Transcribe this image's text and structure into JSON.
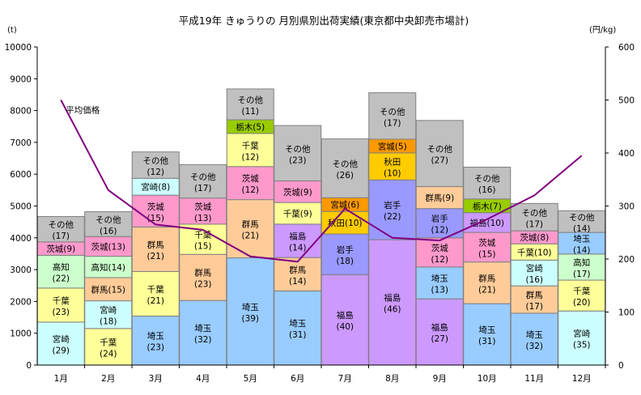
{
  "chart_data": {
    "type": "bar",
    "title": "平成19年 きゅうりの 月別県別出荷実績(東京都中央卸売市場計)",
    "ylabel_left_unit": "(t)",
    "ylabel_right_unit": "(円/kg)",
    "categories": [
      "1月",
      "2月",
      "3月",
      "4月",
      "5月",
      "6月",
      "7月",
      "8月",
      "9月",
      "10月",
      "11月",
      "12月"
    ],
    "ylim": [
      0,
      10000
    ],
    "y2lim": [
      0,
      600
    ],
    "yticks": [
      "0",
      "1000",
      "2000",
      "3000",
      "4000",
      "5000",
      "6000",
      "7000",
      "8000",
      "9000",
      "10000"
    ],
    "y2ticks": [
      "0",
      "100",
      "200",
      "300",
      "400",
      "500",
      "600"
    ],
    "colors": {
      "宮崎": "#ccffff",
      "千葉": "#ffff99",
      "高知": "#ccffcc",
      "茨城": "#ff99cc",
      "その他": "#c0c0c0",
      "群馬": "#ffcc99",
      "埼玉": "#99ccff",
      "栃木": "#99cc00",
      "福島": "#cc99ff",
      "岩手": "#9999ff",
      "秋田": "#ffcc00",
      "宮城": "#ff9900"
    },
    "stacks": [
      [
        {
          "name": "宮崎",
          "value": 1350,
          "label": "宮崎",
          "share": "(29)"
        },
        {
          "name": "千葉",
          "value": 1070,
          "label": "千葉",
          "share": "(23)"
        },
        {
          "name": "高知",
          "value": 1030,
          "label": "高知",
          "share": "(22)"
        },
        {
          "name": "茨城",
          "value": 420,
          "label": "茨城(9)"
        },
        {
          "name": "その他",
          "value": 800,
          "label": "その他",
          "share": "(17)"
        }
      ],
      [
        {
          "name": "千葉",
          "value": 1150,
          "label": "千葉",
          "share": "(24)"
        },
        {
          "name": "宮崎",
          "value": 870,
          "label": "宮崎",
          "share": "(18)"
        },
        {
          "name": "群馬",
          "value": 730,
          "label": "群馬(15)"
        },
        {
          "name": "高知",
          "value": 670,
          "label": "高知(14)"
        },
        {
          "name": "茨城",
          "value": 620,
          "label": "茨城(13)"
        },
        {
          "name": "その他",
          "value": 780,
          "label": "その他",
          "share": "(16)"
        }
      ],
      [
        {
          "name": "埼玉",
          "value": 1540,
          "label": "埼玉",
          "share": "(23)"
        },
        {
          "name": "千葉",
          "value": 1400,
          "label": "千葉",
          "share": "(21)"
        },
        {
          "name": "群馬",
          "value": 1400,
          "label": "群馬",
          "share": "(21)"
        },
        {
          "name": "茨城",
          "value": 1000,
          "label": "茨城",
          "share": "(15)"
        },
        {
          "name": "宮崎",
          "value": 530,
          "label": "宮崎(8)"
        },
        {
          "name": "その他",
          "value": 830,
          "label": "その他",
          "share": "(12)"
        }
      ],
      [
        {
          "name": "埼玉",
          "value": 2030,
          "label": "埼玉",
          "share": "(32)"
        },
        {
          "name": "群馬",
          "value": 1450,
          "label": "群馬",
          "share": "(23)"
        },
        {
          "name": "千葉",
          "value": 950,
          "label": "千葉",
          "share": "(15)"
        },
        {
          "name": "茨城",
          "value": 820,
          "label": "茨城",
          "share": "(13)"
        },
        {
          "name": "その他",
          "value": 1050,
          "label": "その他",
          "share": "(17)"
        }
      ],
      [
        {
          "name": "埼玉",
          "value": 3370,
          "label": "埼玉",
          "share": "(39)"
        },
        {
          "name": "群馬",
          "value": 1830,
          "label": "群馬",
          "share": "(21)"
        },
        {
          "name": "茨城",
          "value": 1040,
          "label": "茨城",
          "share": "(12)"
        },
        {
          "name": "千葉",
          "value": 1040,
          "label": "千葉",
          "share": "(12)"
        },
        {
          "name": "栃木",
          "value": 430,
          "label": "栃木(5)"
        },
        {
          "name": "その他",
          "value": 970,
          "label": "その他",
          "share": "(11)"
        }
      ],
      [
        {
          "name": "埼玉",
          "value": 2330,
          "label": "埼玉",
          "share": "(31)"
        },
        {
          "name": "群馬",
          "value": 1050,
          "label": "群馬",
          "share": "(14)"
        },
        {
          "name": "福島",
          "value": 1050,
          "label": "福島",
          "share": "(14)"
        },
        {
          "name": "千葉",
          "value": 680,
          "label": "千葉(9)"
        },
        {
          "name": "茨城",
          "value": 680,
          "label": "茨城(9)"
        },
        {
          "name": "その他",
          "value": 1740,
          "label": "その他",
          "share": "(23)"
        }
      ],
      [
        {
          "name": "福島",
          "value": 2840,
          "label": "福島",
          "share": "(40)"
        },
        {
          "name": "岩手",
          "value": 1280,
          "label": "岩手",
          "share": "(18)"
        },
        {
          "name": "秋田",
          "value": 710,
          "label": "秋田(10)"
        },
        {
          "name": "宮城",
          "value": 430,
          "label": "宮城(6)"
        },
        {
          "name": "その他",
          "value": 1850,
          "label": "その他",
          "share": "(26)"
        }
      ],
      [
        {
          "name": "福島",
          "value": 3940,
          "label": "福島",
          "share": "(46)"
        },
        {
          "name": "岩手",
          "value": 1880,
          "label": "岩手",
          "share": "(22)"
        },
        {
          "name": "秋田",
          "value": 850,
          "label": "秋田",
          "share": "(10)"
        },
        {
          "name": "宮城",
          "value": 430,
          "label": "宮城(5)"
        },
        {
          "name": "その他",
          "value": 1460,
          "label": "その他",
          "share": "(17)"
        }
      ],
      [
        {
          "name": "福島",
          "value": 2080,
          "label": "福島",
          "share": "(27)"
        },
        {
          "name": "埼玉",
          "value": 1000,
          "label": "埼玉",
          "share": "(13)"
        },
        {
          "name": "茨城",
          "value": 920,
          "label": "茨城",
          "share": "(12)"
        },
        {
          "name": "岩手",
          "value": 920,
          "label": "岩手",
          "share": "(12)"
        },
        {
          "name": "群馬",
          "value": 690,
          "label": "群馬(9)"
        },
        {
          "name": "その他",
          "value": 2080,
          "label": "その他",
          "share": "(27)"
        }
      ],
      [
        {
          "name": "埼玉",
          "value": 1930,
          "label": "埼玉",
          "share": "(31)"
        },
        {
          "name": "群馬",
          "value": 1310,
          "label": "群馬",
          "share": "(21)"
        },
        {
          "name": "茨城",
          "value": 930,
          "label": "茨城",
          "share": "(15)"
        },
        {
          "name": "福島",
          "value": 620,
          "label": "福島(10)"
        },
        {
          "name": "栃木",
          "value": 430,
          "label": "栃木(7)"
        },
        {
          "name": "その他",
          "value": 1000,
          "label": "その他",
          "share": "(16)"
        }
      ],
      [
        {
          "name": "埼玉",
          "value": 1630,
          "label": "埼玉",
          "share": "(32)"
        },
        {
          "name": "群馬",
          "value": 860,
          "label": "群馬",
          "share": "(17)"
        },
        {
          "name": "宮崎",
          "value": 810,
          "label": "宮崎",
          "share": "(16)"
        },
        {
          "name": "千葉",
          "value": 510,
          "label": "千葉(10)"
        },
        {
          "name": "茨城",
          "value": 410,
          "label": "茨城(8)"
        },
        {
          "name": "その他",
          "value": 860,
          "label": "その他",
          "share": "(17)"
        }
      ],
      [
        {
          "name": "宮崎",
          "value": 1700,
          "label": "宮崎",
          "share": "(35)"
        },
        {
          "name": "千葉",
          "value": 970,
          "label": "千葉",
          "share": "(20)"
        },
        {
          "name": "高知",
          "value": 820,
          "label": "高知",
          "share": "(17)"
        },
        {
          "name": "埼玉",
          "value": 680,
          "label": "埼玉",
          "share": "(14)"
        },
        {
          "name": "その他",
          "value": 680,
          "label": "その他",
          "share": "(14)"
        }
      ]
    ],
    "line_series": {
      "name": "平均価格",
      "values": [
        500,
        330,
        265,
        255,
        205,
        195,
        295,
        240,
        235,
        275,
        320,
        395
      ]
    }
  }
}
